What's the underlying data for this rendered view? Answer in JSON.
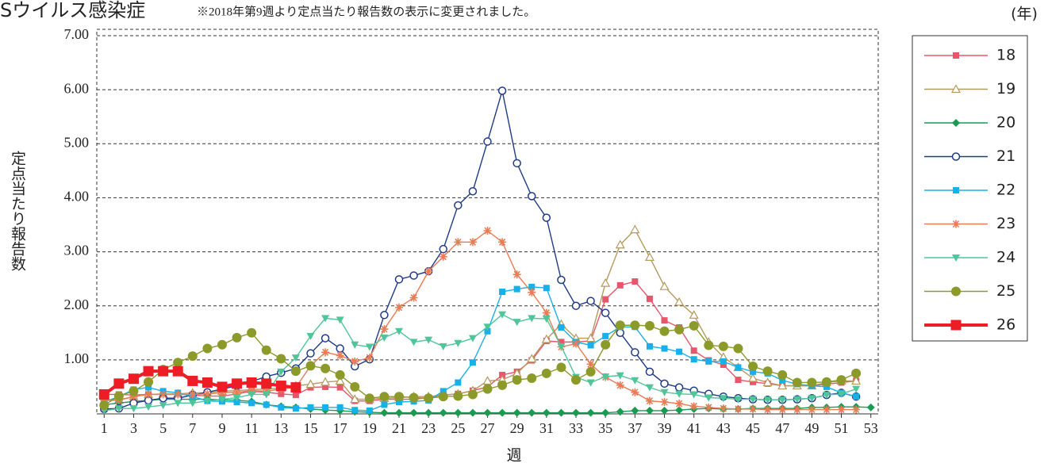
{
  "chart_data": {
    "type": "line",
    "title": "Sウイルス感染症",
    "subtitle": "※2018年第9週より定点当たり報告数の表示に変更されました。",
    "y_label": "定点当たり報告数",
    "x_label": "週",
    "legend_title": "(年)",
    "grid": true,
    "legend": "right",
    "x": [
      1,
      2,
      3,
      4,
      5,
      6,
      7,
      8,
      9,
      10,
      11,
      12,
      13,
      14,
      15,
      16,
      17,
      18,
      19,
      20,
      21,
      22,
      23,
      24,
      25,
      26,
      27,
      28,
      29,
      30,
      31,
      32,
      33,
      34,
      35,
      36,
      37,
      38,
      39,
      40,
      41,
      42,
      43,
      44,
      45,
      46,
      47,
      48,
      49,
      50,
      51,
      52,
      53
    ],
    "xlim": [
      0.5,
      53.5
    ],
    "xticks": [
      1,
      3,
      5,
      7,
      9,
      11,
      13,
      15,
      17,
      19,
      21,
      23,
      25,
      27,
      29,
      31,
      33,
      35,
      37,
      39,
      41,
      43,
      45,
      47,
      49,
      51,
      53
    ],
    "ylim": [
      0,
      7
    ],
    "yticks": [
      {
        "value": 1,
        "label": "1.00"
      },
      {
        "value": 2,
        "label": "2.00"
      },
      {
        "value": 3,
        "label": "3.00"
      },
      {
        "value": 4,
        "label": "4.00"
      },
      {
        "value": 5,
        "label": "5.00"
      },
      {
        "value": 6,
        "label": "6.00"
      },
      {
        "value": 7,
        "label": "7.00"
      }
    ],
    "series": [
      {
        "name": "18",
        "color": "#e8566b",
        "marker": "square",
        "values": [
          0.36,
          0.36,
          0.35,
          0.36,
          0.36,
          0.36,
          0.35,
          0.33,
          0.33,
          0.37,
          0.42,
          0.4,
          0.37,
          0.35,
          0.49,
          0.5,
          0.49,
          0.24,
          0.24,
          0.27,
          0.27,
          0.27,
          0.3,
          0.35,
          0.37,
          0.43,
          0.5,
          0.72,
          0.78,
          0.99,
          1.35,
          1.33,
          1.33,
          1.35,
          2.12,
          2.38,
          2.45,
          2.13,
          1.73,
          1.6,
          1.17,
          0.99,
          0.91,
          0.63,
          0.59,
          0.56,
          0.52,
          0.52,
          0.52,
          0.55,
          0.58,
          0.61,
          null
        ]
      },
      {
        "name": "19",
        "color": "#b59a5e",
        "marker": "triangle",
        "values": [
          0.25,
          0.26,
          0.32,
          0.36,
          0.37,
          0.37,
          0.39,
          0.39,
          0.42,
          0.43,
          0.45,
          0.46,
          0.48,
          0.52,
          0.55,
          0.59,
          0.61,
          0.27,
          0.27,
          0.29,
          0.3,
          0.32,
          0.32,
          0.35,
          0.37,
          0.43,
          0.61,
          0.63,
          0.75,
          1.02,
          1.38,
          1.66,
          1.4,
          1.4,
          2.42,
          3.13,
          3.41,
          2.9,
          2.36,
          2.07,
          1.83,
          1.33,
          1.05,
          0.86,
          0.66,
          0.58,
          0.52,
          0.52,
          0.52,
          0.58,
          0.61,
          0.61,
          null
        ]
      },
      {
        "name": "20",
        "color": "#1a9b52",
        "marker": "diamond",
        "values": [
          0.17,
          0.2,
          0.23,
          0.25,
          0.27,
          0.27,
          0.27,
          0.27,
          0.26,
          0.25,
          0.23,
          0.17,
          0.14,
          0.12,
          0.09,
          0.07,
          0.06,
          0.04,
          0.03,
          0.02,
          0.02,
          0.02,
          0.02,
          0.02,
          0.02,
          0.02,
          0.02,
          0.02,
          0.02,
          0.02,
          0.02,
          0.02,
          0.02,
          0.02,
          0.02,
          0.04,
          0.06,
          0.06,
          0.06,
          0.07,
          0.09,
          0.1,
          0.09,
          0.09,
          0.1,
          0.1,
          0.1,
          0.1,
          0.12,
          0.12,
          0.13,
          0.13,
          0.12
        ]
      },
      {
        "name": "21",
        "color": "#1f3b86",
        "marker": "circle-open",
        "values": [
          0.09,
          0.1,
          0.2,
          0.25,
          0.29,
          0.29,
          0.35,
          0.4,
          0.46,
          0.52,
          0.6,
          0.69,
          0.76,
          0.84,
          1.12,
          1.4,
          1.21,
          0.88,
          1.01,
          1.83,
          2.49,
          2.56,
          2.64,
          3.05,
          3.86,
          4.12,
          5.04,
          5.98,
          4.64,
          4.03,
          3.63,
          2.48,
          2.0,
          2.09,
          1.87,
          1.5,
          1.14,
          0.78,
          0.56,
          0.49,
          0.43,
          0.37,
          0.32,
          0.29,
          0.27,
          0.26,
          0.26,
          0.27,
          0.29,
          0.35,
          0.39,
          0.32,
          null
        ]
      },
      {
        "name": "22",
        "color": "#18b0e8",
        "marker": "square",
        "values": [
          0.22,
          0.32,
          0.45,
          0.49,
          0.42,
          0.39,
          0.32,
          0.24,
          0.23,
          0.22,
          0.2,
          0.17,
          0.12,
          0.1,
          0.12,
          0.12,
          0.12,
          0.07,
          0.06,
          0.17,
          0.22,
          0.23,
          0.25,
          0.42,
          0.58,
          0.95,
          1.53,
          2.26,
          2.31,
          2.35,
          2.33,
          1.6,
          1.33,
          1.27,
          1.44,
          1.61,
          1.61,
          1.25,
          1.21,
          1.15,
          1.01,
          0.97,
          0.97,
          0.86,
          0.78,
          0.75,
          0.62,
          0.55,
          0.52,
          0.5,
          0.39,
          0.32,
          null
        ]
      },
      {
        "name": "23",
        "color": "#e87c55",
        "marker": "asterisk",
        "values": [
          0.25,
          0.25,
          0.32,
          0.36,
          0.36,
          0.36,
          0.36,
          0.37,
          0.39,
          0.4,
          0.43,
          0.42,
          0.46,
          0.49,
          0.89,
          1.14,
          1.08,
          0.97,
          1.04,
          1.57,
          1.97,
          2.15,
          2.64,
          2.91,
          3.18,
          3.18,
          3.39,
          3.18,
          2.58,
          2.25,
          1.87,
          1.24,
          1.3,
          0.92,
          0.68,
          0.53,
          0.4,
          0.24,
          0.22,
          0.19,
          0.14,
          0.12,
          0.1,
          0.09,
          0.09,
          0.08,
          0.08,
          0.08,
          0.08,
          0.08,
          0.08,
          0.08,
          null
        ]
      },
      {
        "name": "24",
        "color": "#4fc59a",
        "marker": "triangle-down",
        "values": [
          0.06,
          0.1,
          0.1,
          0.13,
          0.16,
          0.2,
          0.2,
          0.24,
          0.27,
          0.3,
          0.36,
          0.36,
          0.78,
          1.04,
          1.44,
          1.77,
          1.74,
          1.28,
          1.24,
          1.41,
          1.53,
          1.33,
          1.37,
          1.25,
          1.31,
          1.4,
          1.61,
          1.84,
          1.7,
          1.77,
          1.76,
          1.25,
          0.68,
          0.58,
          0.69,
          0.71,
          0.62,
          0.49,
          0.4,
          0.37,
          0.36,
          0.3,
          0.29,
          0.27,
          0.27,
          0.26,
          0.26,
          0.27,
          0.29,
          0.35,
          0.37,
          0.46,
          null
        ]
      },
      {
        "name": "25",
        "color": "#8c9a2a",
        "marker": "circle",
        "values": [
          0.16,
          0.33,
          0.42,
          0.59,
          0.82,
          0.95,
          1.07,
          1.21,
          1.28,
          1.41,
          1.5,
          1.18,
          1.02,
          0.79,
          0.89,
          0.84,
          0.72,
          0.5,
          0.29,
          0.32,
          0.32,
          0.3,
          0.29,
          0.32,
          0.33,
          0.36,
          0.46,
          0.53,
          0.63,
          0.66,
          0.75,
          0.86,
          0.63,
          0.78,
          1.28,
          1.64,
          1.64,
          1.63,
          1.53,
          1.56,
          1.63,
          1.27,
          1.25,
          1.21,
          0.88,
          0.79,
          0.72,
          0.58,
          0.58,
          0.59,
          0.63,
          0.75,
          null
        ]
      },
      {
        "name": "26",
        "color": "#ee1c25",
        "marker": "square-big",
        "values": [
          0.36,
          0.56,
          0.65,
          0.79,
          0.79,
          0.79,
          0.61,
          0.58,
          0.5,
          0.56,
          0.58,
          0.56,
          0.52,
          0.49,
          null,
          null,
          null,
          null,
          null,
          null,
          null,
          null,
          null,
          null,
          null,
          null,
          null,
          null,
          null,
          null,
          null,
          null,
          null,
          null,
          null,
          null,
          null,
          null,
          null,
          null,
          null,
          null,
          null,
          null,
          null,
          null,
          null,
          null,
          null,
          null,
          null,
          null,
          null
        ]
      }
    ]
  }
}
